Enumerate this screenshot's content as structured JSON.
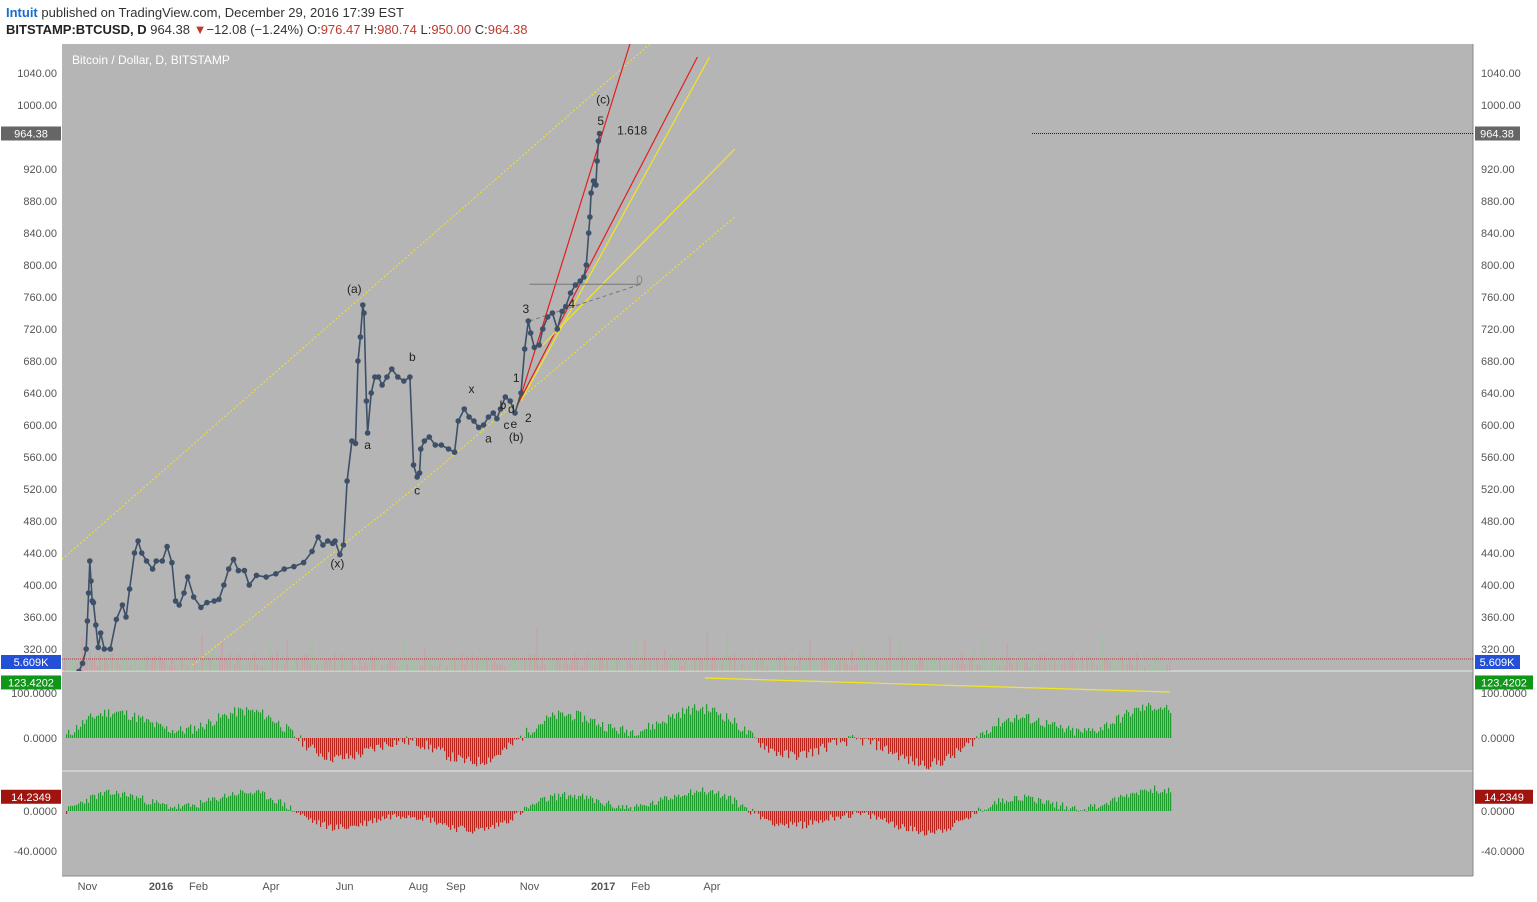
{
  "header": {
    "author": "Intuit",
    "published": "published on TradingView.com, December 29, 2016 17:39 EST",
    "symbol": "BITSTAMP:BTCUSD, D",
    "price": "964.38",
    "change_arrow": "▼",
    "change": "−12.08 (−1.24%)",
    "o_label": "O:",
    "o_value": "976.47",
    "h_label": "H:",
    "h_value": "980.74",
    "l_label": "L:",
    "l_value": "950.00",
    "c_label": "C:",
    "c_value": "964.38"
  },
  "colors": {
    "plot_bg": "#b5b5b5",
    "price_line": "#3d5068",
    "channel_yellow": "#f5e61e",
    "fan_red": "#e21f1f",
    "osc_up": "#1e9c2e",
    "osc_down": "#b8241c",
    "label_green": "#109618",
    "label_red": "#a01410",
    "label_blue": "#2450d8"
  },
  "chart_data": {
    "type": "line",
    "title": "Bitcoin / Dollar, D, BITSTAMP",
    "x_ticks": [
      "Nov",
      "2016",
      "Feb",
      "Apr",
      "Jun",
      "Aug",
      "Sep",
      "Nov",
      "2017",
      "Feb",
      "Apr"
    ],
    "y_ticks": [
      "1040.00",
      "1000.00",
      "920.00",
      "880.00",
      "840.00",
      "800.00",
      "760.00",
      "720.00",
      "680.00",
      "640.00",
      "600.00",
      "560.00",
      "520.00",
      "480.00",
      "440.00",
      "400.00",
      "360.00",
      "320.00"
    ],
    "ylim": [
      300,
      1080
    ],
    "last_price": "964.38",
    "volume_label": "5.609K",
    "series": [
      {
        "values_note": "daily close, Oct 2015 - Dec 29 2016",
        "x": [
          "2015-10-25",
          "2015-10-28",
          "2015-10-31",
          "2015-11-01",
          "2015-11-02",
          "2015-11-03",
          "2015-11-04",
          "2015-11-05",
          "2015-11-06",
          "2015-11-08",
          "2015-11-10",
          "2015-11-12",
          "2015-11-15",
          "2015-11-20",
          "2015-11-25",
          "2015-11-30",
          "2015-12-03",
          "2015-12-06",
          "2015-12-10",
          "2015-12-13",
          "2015-12-16",
          "2015-12-20",
          "2015-12-25",
          "2015-12-28",
          "2016-01-02",
          "2016-01-06",
          "2016-01-10",
          "2016-01-13",
          "2016-01-16",
          "2016-01-20",
          "2016-01-23",
          "2016-01-28",
          "2016-02-03",
          "2016-02-08",
          "2016-02-14",
          "2016-02-18",
          "2016-02-22",
          "2016-02-26",
          "2016-03-01",
          "2016-03-05",
          "2016-03-10",
          "2016-03-14",
          "2016-03-20",
          "2016-03-28",
          "2016-04-05",
          "2016-04-12",
          "2016-04-20",
          "2016-04-28",
          "2016-05-05",
          "2016-05-10",
          "2016-05-14",
          "2016-05-18",
          "2016-05-22",
          "2016-05-24",
          "2016-05-28",
          "2016-05-31",
          "2016-06-03",
          "2016-06-07",
          "2016-06-10",
          "2016-06-12",
          "2016-06-14",
          "2016-06-16",
          "2016-06-17",
          "2016-06-19",
          "2016-06-20",
          "2016-06-23",
          "2016-06-26",
          "2016-06-29",
          "2016-07-02",
          "2016-07-06",
          "2016-07-10",
          "2016-07-15",
          "2016-07-20",
          "2016-07-25",
          "2016-07-28",
          "2016-07-31",
          "2016-08-02",
          "2016-08-03",
          "2016-08-06",
          "2016-08-10",
          "2016-08-15",
          "2016-08-20",
          "2016-08-26",
          "2016-08-31",
          "2016-09-03",
          "2016-09-08",
          "2016-09-12",
          "2016-09-16",
          "2016-09-20",
          "2016-09-24",
          "2016-09-28",
          "2016-10-02",
          "2016-10-05",
          "2016-10-08",
          "2016-10-12",
          "2016-10-16",
          "2016-10-20",
          "2016-10-25",
          "2016-10-28",
          "2016-10-31",
          "2016-11-02",
          "2016-11-05",
          "2016-11-09",
          "2016-11-12",
          "2016-11-16",
          "2016-11-20",
          "2016-11-24",
          "2016-11-28",
          "2016-12-01",
          "2016-12-05",
          "2016-12-09",
          "2016-12-13",
          "2016-12-16",
          "2016-12-18",
          "2016-12-20",
          "2016-12-21",
          "2016-12-22",
          "2016-12-24",
          "2016-12-26",
          "2016-12-27",
          "2016-12-28",
          "2016-12-29"
        ],
        "y": [
          292,
          302,
          320,
          355,
          390,
          430,
          405,
          380,
          378,
          350,
          322,
          340,
          320,
          320,
          357,
          375,
          360,
          395,
          440,
          455,
          440,
          430,
          420,
          430,
          430,
          448,
          428,
          380,
          375,
          390,
          410,
          385,
          372,
          378,
          380,
          382,
          400,
          420,
          432,
          418,
          418,
          400,
          412,
          410,
          414,
          420,
          423,
          428,
          442,
          460,
          450,
          455,
          452,
          455,
          438,
          450,
          530,
          580,
          577,
          680,
          710,
          750,
          740,
          630,
          590,
          640,
          660,
          660,
          650,
          660,
          670,
          660,
          655,
          660,
          550,
          535,
          540,
          570,
          580,
          585,
          575,
          575,
          570,
          566,
          605,
          620,
          610,
          605,
          597,
          600,
          610,
          615,
          608,
          620,
          635,
          630,
          615,
          640,
          695,
          730,
          715,
          697,
          700,
          720,
          735,
          740,
          720,
          742,
          748,
          765,
          775,
          780,
          785,
          800,
          840,
          860,
          890,
          905,
          900,
          930,
          955,
          964.38
        ]
      }
    ],
    "annotations": [
      "(a)",
      "a",
      "b",
      "c",
      "(x)",
      "x",
      "a",
      "b",
      "c",
      "d",
      "e",
      "(b)",
      "1",
      "2",
      "3",
      "4",
      "5",
      "(c)",
      "1.618",
      "0"
    ],
    "oscillators": [
      {
        "last_value": "123.4202",
        "y_ticks": [
          "100.0000",
          "0.0000"
        ]
      },
      {
        "last_value": "14.2349",
        "y_ticks": [
          "0.0000",
          "-40.0000"
        ]
      }
    ]
  }
}
